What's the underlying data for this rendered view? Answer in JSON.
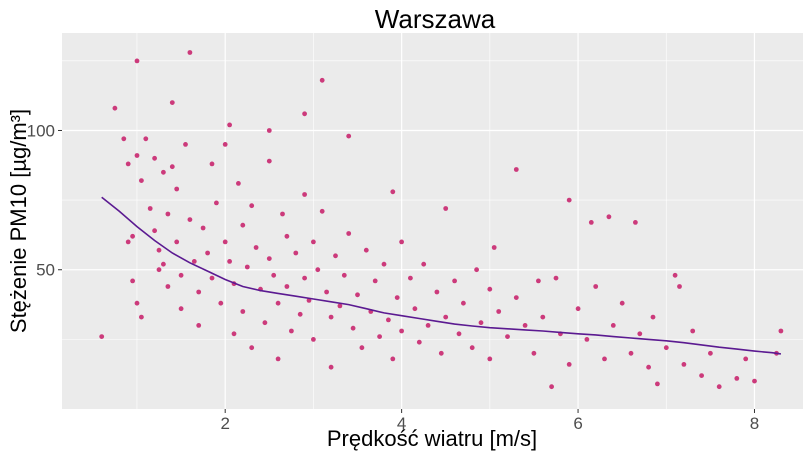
{
  "chart_data": {
    "type": "scatter",
    "title": "Warszawa",
    "xlabel": "Prędkość wiatru [m/s]",
    "ylabel": "Stężenie PM10 [µg/m³]",
    "xlim": [
      0.15,
      8.55
    ],
    "ylim": [
      0,
      135
    ],
    "xticks": [
      2,
      4,
      6,
      8
    ],
    "yticks": [
      50,
      100
    ],
    "grid": true,
    "colors": {
      "points": "#cc3a7b",
      "trend": "#5b1a91",
      "panel": "#ebebeb",
      "grid": "#ffffff"
    },
    "points": [
      [
        0.6,
        26
      ],
      [
        0.75,
        108
      ],
      [
        0.85,
        97
      ],
      [
        0.9,
        88
      ],
      [
        0.95,
        62
      ],
      [
        0.95,
        46
      ],
      [
        1.0,
        125
      ],
      [
        1.0,
        91
      ],
      [
        1.05,
        82
      ],
      [
        1.0,
        38
      ],
      [
        1.05,
        33
      ],
      [
        0.9,
        60
      ],
      [
        1.1,
        97
      ],
      [
        1.15,
        72
      ],
      [
        1.2,
        90
      ],
      [
        1.2,
        64
      ],
      [
        1.25,
        57
      ],
      [
        1.25,
        50
      ],
      [
        1.3,
        85
      ],
      [
        1.3,
        52
      ],
      [
        1.35,
        70
      ],
      [
        1.35,
        44
      ],
      [
        1.4,
        110
      ],
      [
        1.4,
        87
      ],
      [
        1.45,
        79
      ],
      [
        1.45,
        60
      ],
      [
        1.5,
        48
      ],
      [
        1.5,
        36
      ],
      [
        1.55,
        95
      ],
      [
        1.6,
        128
      ],
      [
        1.6,
        68
      ],
      [
        1.65,
        53
      ],
      [
        1.7,
        42
      ],
      [
        1.7,
        30
      ],
      [
        1.75,
        65
      ],
      [
        1.8,
        56
      ],
      [
        1.85,
        88
      ],
      [
        1.85,
        47
      ],
      [
        1.9,
        74
      ],
      [
        1.95,
        38
      ],
      [
        2.0,
        95
      ],
      [
        2.0,
        60
      ],
      [
        2.05,
        102
      ],
      [
        2.05,
        53
      ],
      [
        2.1,
        45
      ],
      [
        2.1,
        27
      ],
      [
        2.15,
        81
      ],
      [
        2.2,
        66
      ],
      [
        2.2,
        35
      ],
      [
        2.25,
        51
      ],
      [
        2.3,
        73
      ],
      [
        2.3,
        22
      ],
      [
        2.35,
        58
      ],
      [
        2.4,
        43
      ],
      [
        2.45,
        31
      ],
      [
        2.5,
        100
      ],
      [
        2.5,
        89
      ],
      [
        2.5,
        54
      ],
      [
        2.55,
        48
      ],
      [
        2.6,
        38
      ],
      [
        2.6,
        18
      ],
      [
        2.65,
        70
      ],
      [
        2.7,
        62
      ],
      [
        2.7,
        44
      ],
      [
        2.75,
        28
      ],
      [
        2.8,
        56
      ],
      [
        2.85,
        34
      ],
      [
        2.9,
        106
      ],
      [
        2.9,
        77
      ],
      [
        2.9,
        47
      ],
      [
        2.95,
        39
      ],
      [
        3.0,
        60
      ],
      [
        3.0,
        25
      ],
      [
        3.05,
        50
      ],
      [
        3.1,
        118
      ],
      [
        3.1,
        71
      ],
      [
        3.15,
        42
      ],
      [
        3.2,
        33
      ],
      [
        3.2,
        15
      ],
      [
        3.25,
        55
      ],
      [
        3.3,
        37
      ],
      [
        3.35,
        48
      ],
      [
        3.4,
        98
      ],
      [
        3.4,
        63
      ],
      [
        3.45,
        29
      ],
      [
        3.5,
        41
      ],
      [
        3.55,
        22
      ],
      [
        3.6,
        57
      ],
      [
        3.65,
        35
      ],
      [
        3.7,
        46
      ],
      [
        3.75,
        26
      ],
      [
        3.8,
        52
      ],
      [
        3.85,
        32
      ],
      [
        3.9,
        78
      ],
      [
        3.9,
        18
      ],
      [
        3.95,
        40
      ],
      [
        4.0,
        60
      ],
      [
        4.0,
        28
      ],
      [
        4.1,
        47
      ],
      [
        4.15,
        36
      ],
      [
        4.2,
        24
      ],
      [
        4.25,
        52
      ],
      [
        4.3,
        30
      ],
      [
        4.4,
        42
      ],
      [
        4.45,
        20
      ],
      [
        4.5,
        72
      ],
      [
        4.5,
        33
      ],
      [
        4.6,
        46
      ],
      [
        4.65,
        27
      ],
      [
        4.7,
        38
      ],
      [
        4.8,
        22
      ],
      [
        4.85,
        50
      ],
      [
        4.9,
        31
      ],
      [
        5.0,
        43
      ],
      [
        5.0,
        18
      ],
      [
        5.05,
        58
      ],
      [
        5.1,
        35
      ],
      [
        5.2,
        26
      ],
      [
        5.3,
        86
      ],
      [
        5.3,
        40
      ],
      [
        5.4,
        30
      ],
      [
        5.5,
        20
      ],
      [
        5.55,
        46
      ],
      [
        5.6,
        33
      ],
      [
        5.7,
        8
      ],
      [
        5.75,
        47
      ],
      [
        5.8,
        27
      ],
      [
        5.9,
        75
      ],
      [
        5.9,
        16
      ],
      [
        6.0,
        36
      ],
      [
        6.1,
        25
      ],
      [
        6.15,
        67
      ],
      [
        6.2,
        44
      ],
      [
        6.3,
        18
      ],
      [
        6.35,
        69
      ],
      [
        6.4,
        30
      ],
      [
        6.5,
        38
      ],
      [
        6.6,
        20
      ],
      [
        6.65,
        67
      ],
      [
        6.7,
        27
      ],
      [
        6.8,
        15
      ],
      [
        6.85,
        33
      ],
      [
        6.9,
        9
      ],
      [
        7.0,
        22
      ],
      [
        7.1,
        48
      ],
      [
        7.15,
        44
      ],
      [
        7.2,
        16
      ],
      [
        7.3,
        28
      ],
      [
        7.4,
        12
      ],
      [
        7.5,
        20
      ],
      [
        7.6,
        8
      ],
      [
        7.8,
        11
      ],
      [
        7.9,
        18
      ],
      [
        8.0,
        10
      ],
      [
        8.25,
        20
      ],
      [
        8.3,
        28
      ]
    ],
    "trend": [
      [
        0.6,
        76
      ],
      [
        0.8,
        71
      ],
      [
        1.0,
        65.5
      ],
      [
        1.2,
        60.5
      ],
      [
        1.4,
        56
      ],
      [
        1.6,
        52.5
      ],
      [
        1.8,
        49.5
      ],
      [
        2.0,
        46.5
      ],
      [
        2.2,
        44
      ],
      [
        2.4,
        42.5
      ],
      [
        2.6,
        41.5
      ],
      [
        2.8,
        40.5
      ],
      [
        3.0,
        39.5
      ],
      [
        3.2,
        38.5
      ],
      [
        3.4,
        37.5
      ],
      [
        3.6,
        36
      ],
      [
        3.8,
        34.5
      ],
      [
        4.0,
        33.5
      ],
      [
        4.2,
        32.5
      ],
      [
        4.4,
        31.5
      ],
      [
        4.6,
        30.5
      ],
      [
        4.8,
        29.8
      ],
      [
        5.0,
        29.2
      ],
      [
        5.2,
        28.8
      ],
      [
        5.4,
        28.4
      ],
      [
        5.6,
        28
      ],
      [
        5.8,
        27.5
      ],
      [
        6.0,
        27
      ],
      [
        6.2,
        26.6
      ],
      [
        6.4,
        26
      ],
      [
        6.6,
        25.5
      ],
      [
        6.8,
        25
      ],
      [
        7.0,
        24.5
      ],
      [
        7.2,
        23.8
      ],
      [
        7.4,
        23
      ],
      [
        7.6,
        22.2
      ],
      [
        7.8,
        21.5
      ],
      [
        8.0,
        20.8
      ],
      [
        8.2,
        20.2
      ],
      [
        8.3,
        19.8
      ]
    ]
  }
}
